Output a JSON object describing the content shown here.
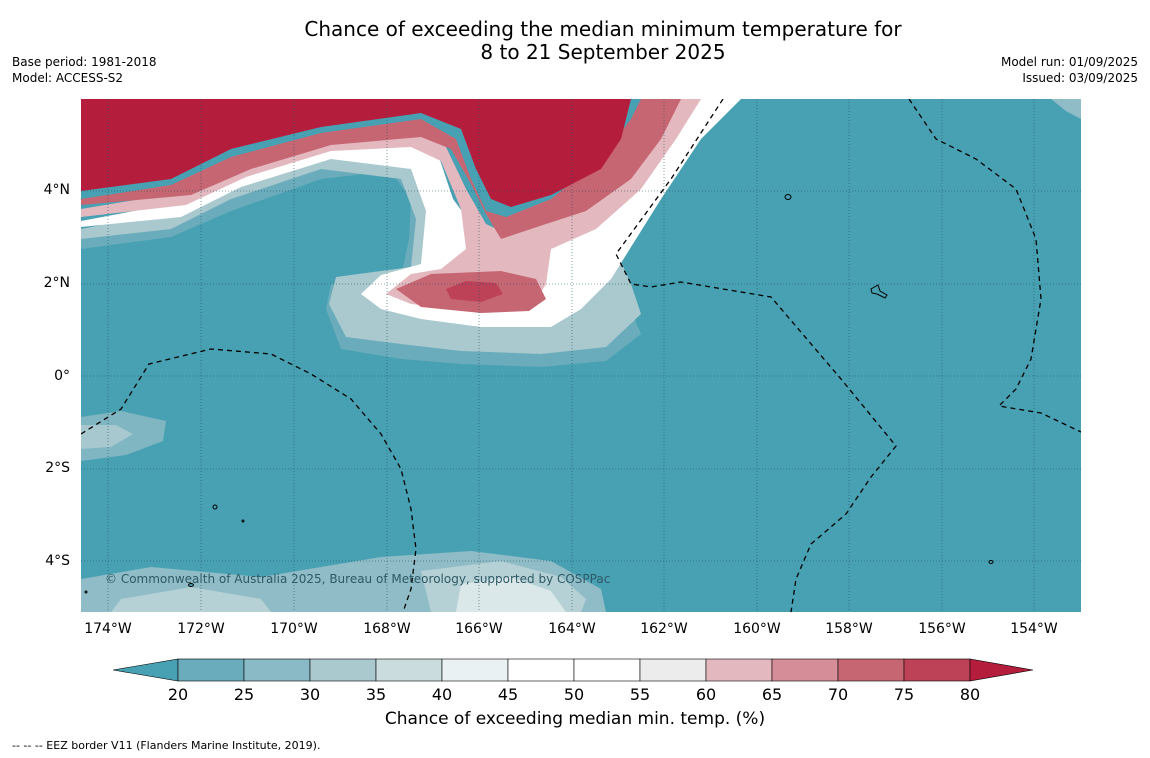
{
  "title": {
    "line1": "Chance of exceeding the median minimum temperature for",
    "line2": "8 to 21 September 2025"
  },
  "meta_left": {
    "base_period": "Base period: 1981-2018",
    "model": "Model: ACCESS-S2"
  },
  "meta_right": {
    "model_run": "Model run: 01/09/2025",
    "issued": "Issued: 03/09/2025"
  },
  "map": {
    "copyright": "© Commonwealth of Australia 2025, Bureau of Meteorology, supported by COSPPac",
    "lat_ticks": [
      "4°N",
      "2°N",
      "0°",
      "2°S",
      "4°S"
    ],
    "lon_ticks": [
      "174°W",
      "172°W",
      "170°W",
      "168°W",
      "166°W",
      "164°W",
      "162°W",
      "160°W",
      "158°W",
      "156°W",
      "154°W"
    ],
    "colors": {
      "ocean_below": "#48a1b3",
      "land_above": "#b41e3c"
    }
  },
  "colorbar": {
    "ticks": [
      "20",
      "25",
      "30",
      "35",
      "40",
      "45",
      "50",
      "55",
      "60",
      "65",
      "70",
      "75",
      "80"
    ],
    "colors": [
      "#48a1b3",
      "#6aacbb",
      "#89bac5",
      "#a9c9ce",
      "#cbdcdf",
      "#e9f1f2",
      "#ffffff",
      "#ffffff",
      "#ececec",
      "#e3b9bf",
      "#d58e97",
      "#c76673",
      "#bd4257",
      "#b41e3c"
    ],
    "label": "Chance of exceeding median min. temp. (%)"
  },
  "footnote": "--  --  -- EEZ border V11 (Flanders Marine Institute, 2019)."
}
